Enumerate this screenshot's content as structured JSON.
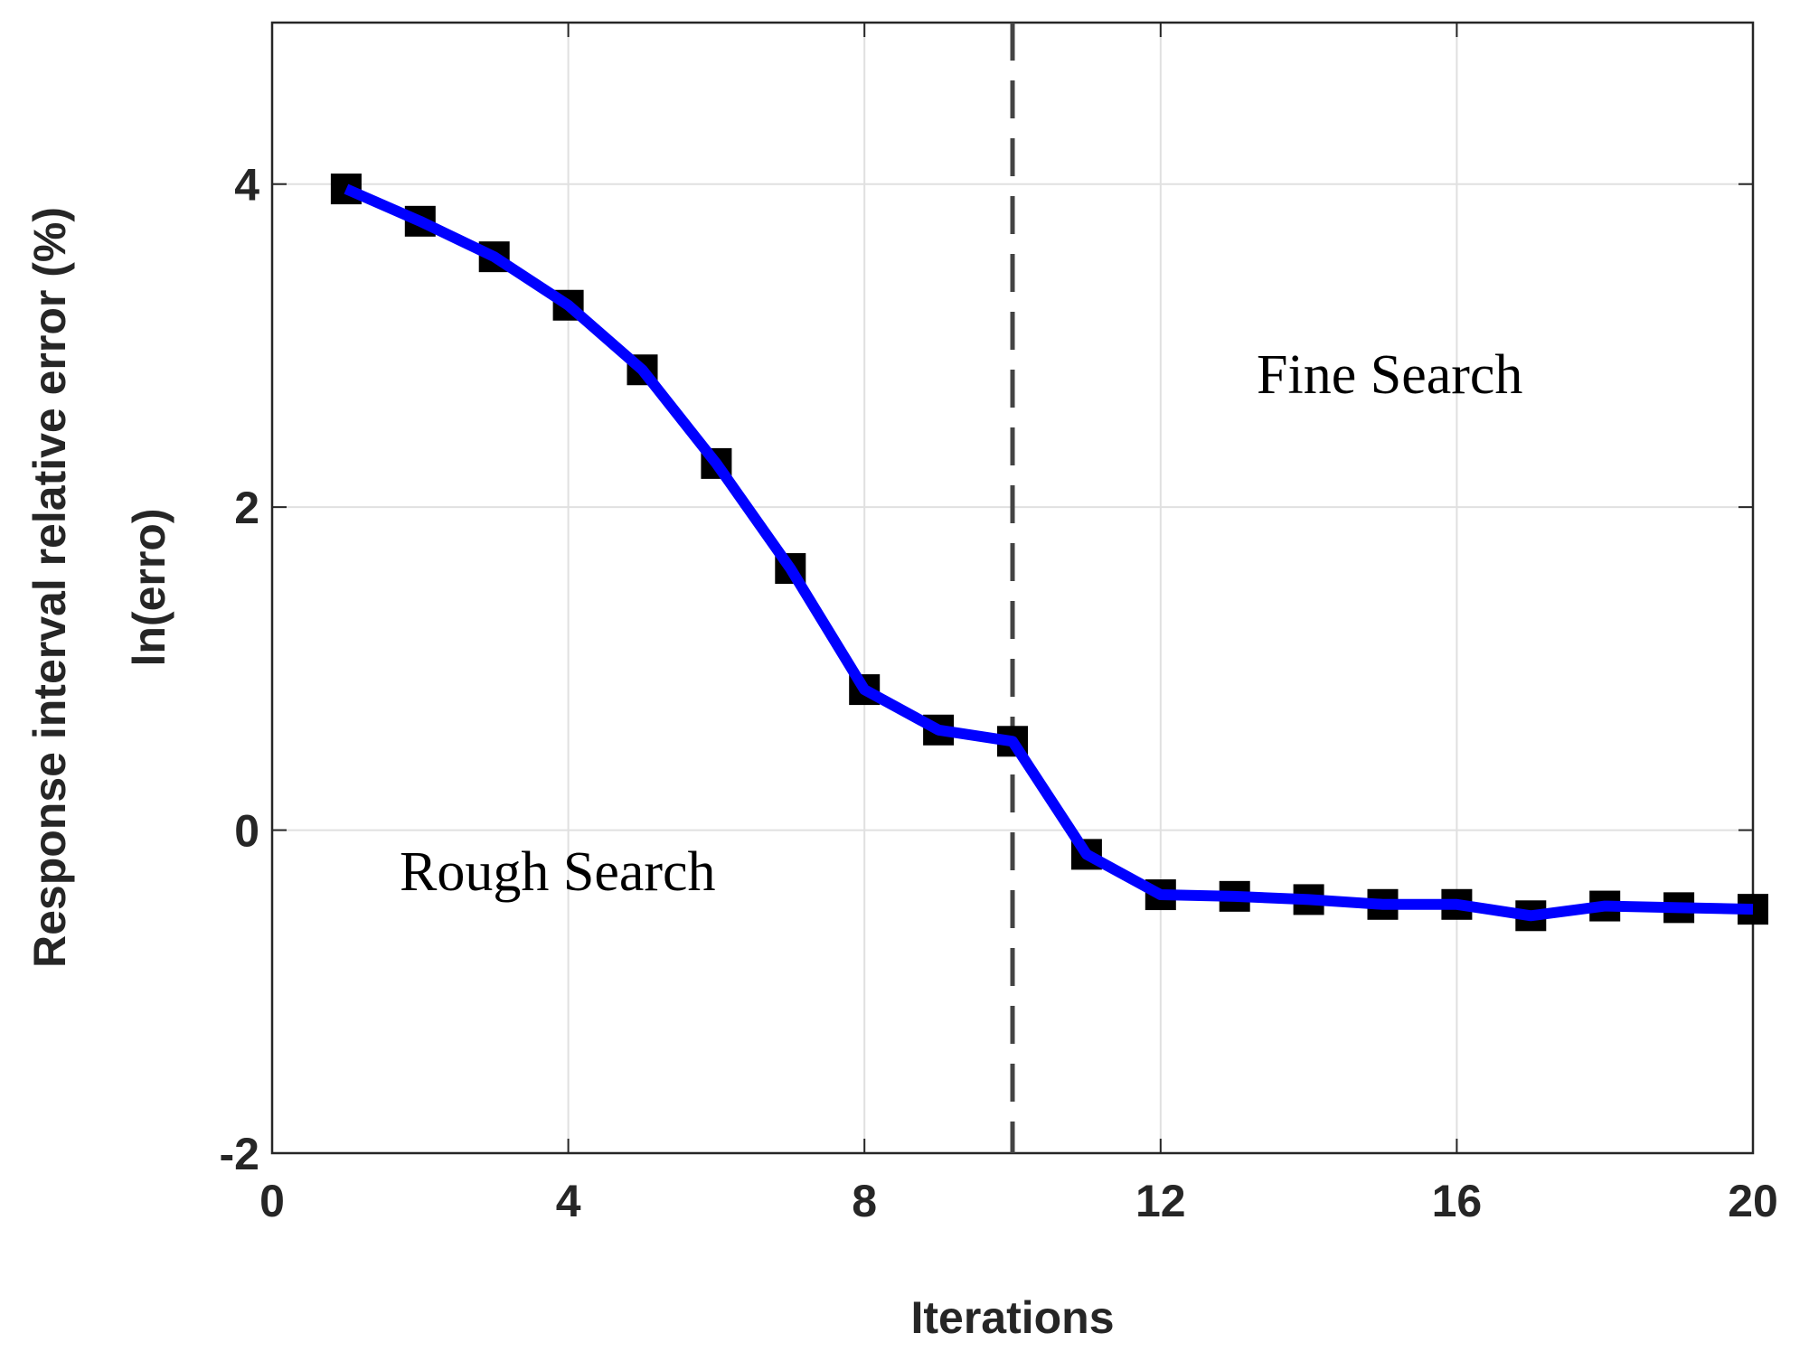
{
  "chart_data": {
    "type": "line",
    "xlabel": "Iterations",
    "ylabel": [
      "Response interval relative error (%)",
      "ln(erro)"
    ],
    "x": [
      1,
      2,
      3,
      4,
      5,
      6,
      7,
      8,
      9,
      10,
      11,
      12,
      13,
      14,
      15,
      16,
      17,
      18,
      19,
      20
    ],
    "series": [
      {
        "color": "#0000ff",
        "marker_color": "#000000",
        "values": [
          3.97,
          3.77,
          3.55,
          3.25,
          2.85,
          2.27,
          1.62,
          0.87,
          0.62,
          0.55,
          -0.15,
          -0.4,
          -0.41,
          -0.43,
          -0.46,
          -0.46,
          -0.53,
          -0.47,
          -0.48,
          -0.49
        ]
      }
    ],
    "xlim": [
      0,
      20
    ],
    "xticks": [
      0,
      4,
      8,
      12,
      16,
      20
    ],
    "ylim": [
      -2,
      5
    ],
    "yticks": [
      -2,
      0,
      2,
      4
    ],
    "grid": true,
    "vline": 10,
    "annotations": [
      "Rough Search",
      "Fine Search"
    ]
  }
}
